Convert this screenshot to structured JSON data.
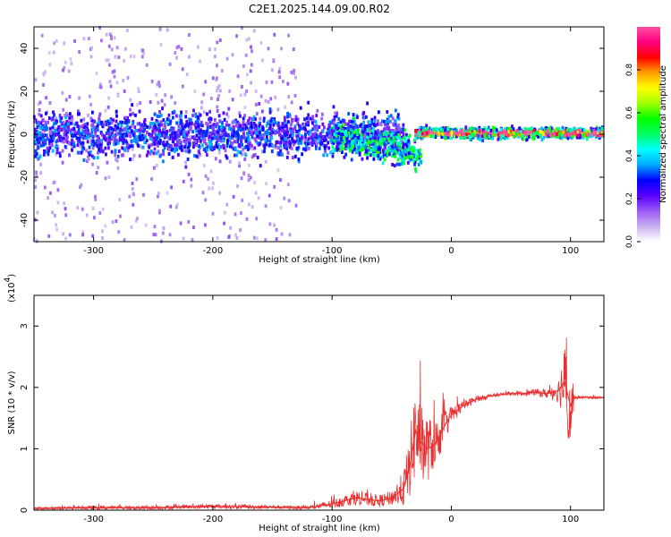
{
  "title": "C2E1.2025.144.09.00.R02",
  "chart_data": [
    {
      "type": "heatmap",
      "xlabel": "Height of straight line (km)",
      "ylabel": "Frequency (Hz)",
      "xlim": [
        -350,
        128
      ],
      "ylim": [
        -50,
        50
      ],
      "xticks": [
        -300,
        -200,
        -100,
        0,
        100
      ],
      "yticks": [
        -40,
        -20,
        0,
        20,
        40
      ],
      "colorbar": {
        "label": "Normalized spectral amplitude",
        "range": [
          0,
          1
        ],
        "ticks": [
          "0.0",
          "0.2",
          "0.4",
          "0.6",
          "0.8"
        ],
        "colormap": [
          "#ffffff",
          "#c8b0f0",
          "#9b59f5",
          "#5a00ff",
          "#0000ff",
          "#00a8ff",
          "#00ffff",
          "#00ff60",
          "#00ff00",
          "#a0ff00",
          "#ffff00",
          "#ffa000",
          "#ff0000",
          "#ff0080",
          "#ff4fa0"
        ]
      },
      "features": [
        {
          "x_range": [
            -350,
            -130
          ],
          "description": "sparse scattered noise across full frequency range",
          "center_hz": 0,
          "spread_hz": 50,
          "amplitude": 0.1
        },
        {
          "x_range": [
            -350,
            -40
          ],
          "description": "main signal band",
          "center_hz": 0,
          "spread_hz": 8,
          "amplitude": 0.25
        },
        {
          "x_range": [
            -100,
            -25
          ],
          "description": "signal band descending in frequency",
          "center_hz": -6,
          "spread_hz": 6,
          "amplitude": 0.4
        },
        {
          "x_range": [
            -30,
            128
          ],
          "description": "narrow strong carrier line",
          "center_hz": 0.5,
          "spread_hz": 2,
          "amplitude": 0.9
        }
      ]
    },
    {
      "type": "line",
      "xlabel": "Height of straight line (km)",
      "ylabel": "SNR (10 * v/v)",
      "yscale_label": "(x10",
      "yscale_exp": "4",
      "xlim": [
        -350,
        128
      ],
      "ylim": [
        0,
        3.5
      ],
      "xticks": [
        -300,
        -200,
        -100,
        0,
        100
      ],
      "yticks": [
        0,
        1,
        2,
        3
      ],
      "series": [
        {
          "color": "#e83030",
          "x": [
            -350,
            -300,
            -250,
            -200,
            -150,
            -120,
            -100,
            -80,
            -60,
            -50,
            -40,
            -35,
            -30,
            -25,
            -20,
            -15,
            -10,
            -5,
            0,
            10,
            20,
            30,
            40,
            50,
            60,
            70,
            80,
            90,
            95,
            100,
            103,
            110,
            128
          ],
          "y": [
            0.03,
            0.04,
            0.04,
            0.06,
            0.05,
            0.04,
            0.1,
            0.2,
            0.15,
            0.2,
            0.35,
            0.7,
            1.3,
            1.1,
            1.0,
            1.05,
            1.2,
            1.4,
            1.55,
            1.7,
            1.8,
            1.85,
            1.88,
            1.9,
            1.9,
            1.92,
            1.9,
            1.95,
            2.1,
            1.7,
            1.83,
            1.84,
            1.83
          ],
          "noise": [
            0.02,
            0.03,
            0.03,
            0.04,
            0.03,
            0.03,
            0.07,
            0.12,
            0.1,
            0.12,
            0.3,
            0.5,
            0.8,
            0.6,
            0.55,
            0.4,
            0.35,
            0.25,
            0.15,
            0.08,
            0.05,
            0.04,
            0.03,
            0.03,
            0.04,
            0.05,
            0.08,
            0.2,
            0.6,
            1.0,
            0.03,
            0.02,
            0.02
          ]
        }
      ]
    }
  ]
}
